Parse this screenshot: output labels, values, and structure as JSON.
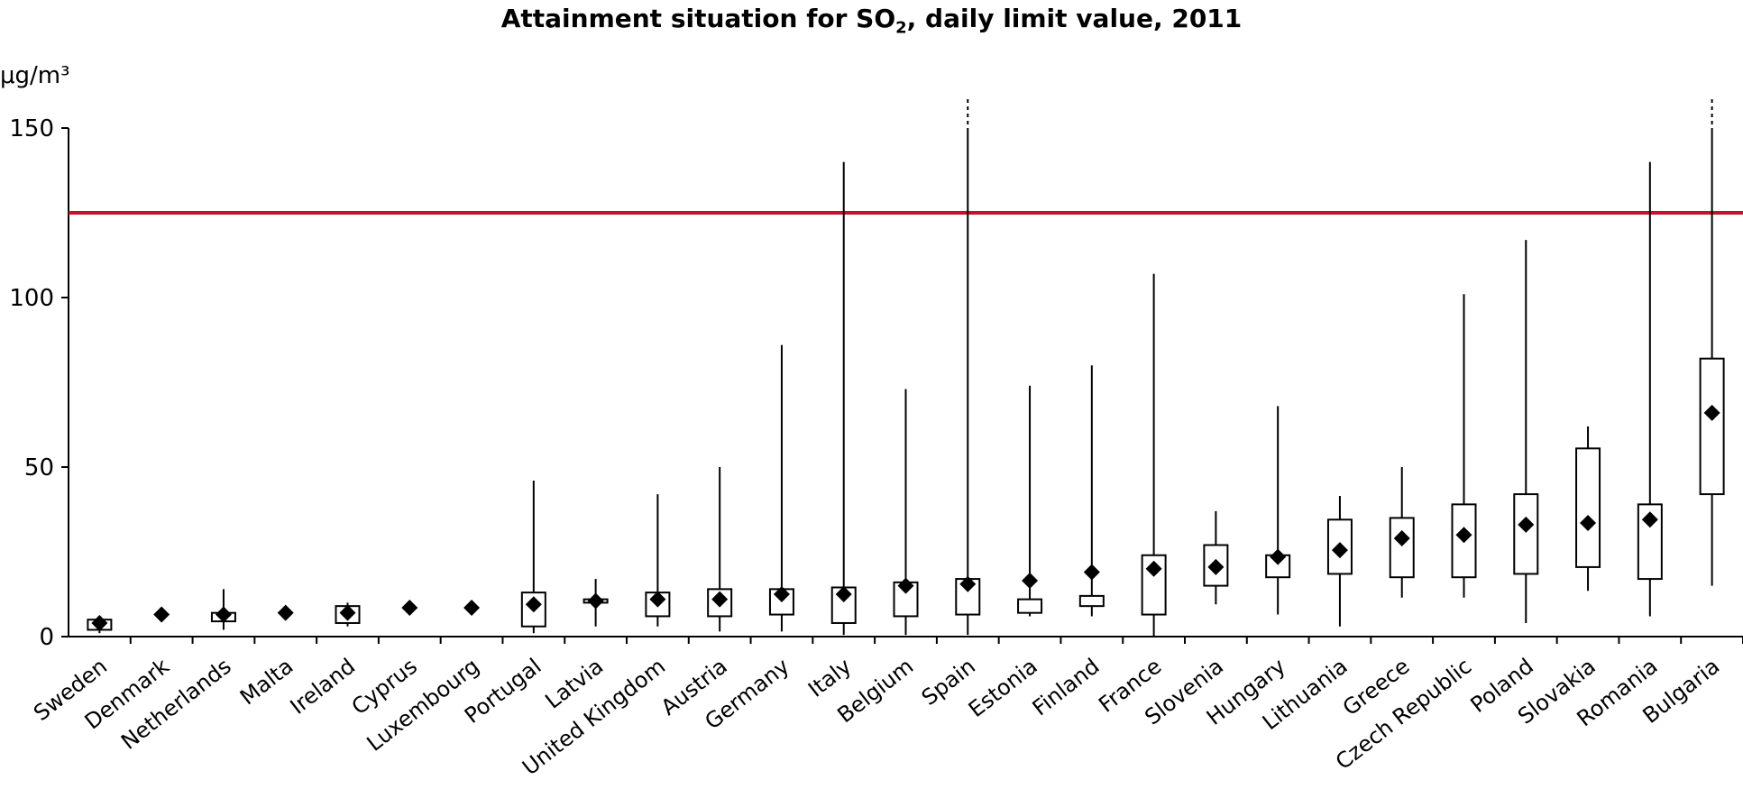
{
  "chart_data": {
    "type": "box",
    "title_main": "Attainment situation for SO",
    "title_sub": "2",
    "title_rest": ", daily limit value, 2011",
    "ylabel": "μg/m³",
    "ylim": [
      0,
      150
    ],
    "yticks": [
      0,
      50,
      100,
      150
    ],
    "limit_value": 125,
    "limit_color": "#c8102e",
    "series": [
      {
        "country": "Sweden",
        "min": 1,
        "q1": 2,
        "mean": 4,
        "q3": 5,
        "max": 5,
        "clipped": false
      },
      {
        "country": "Denmark",
        "min": 6.5,
        "q1": 6.5,
        "mean": 6.5,
        "q3": 6.5,
        "max": 6.5,
        "clipped": false
      },
      {
        "country": "Netherlands",
        "min": 2,
        "q1": 4.5,
        "mean": 6.5,
        "q3": 7,
        "max": 14,
        "clipped": false
      },
      {
        "country": "Malta",
        "min": 7,
        "q1": 7,
        "mean": 7,
        "q3": 7,
        "max": 7,
        "clipped": false
      },
      {
        "country": "Ireland",
        "min": 3,
        "q1": 4,
        "mean": 7,
        "q3": 9,
        "max": 10,
        "clipped": false
      },
      {
        "country": "Cyprus",
        "min": 8.5,
        "q1": 8.5,
        "mean": 8.5,
        "q3": 8.5,
        "max": 8.5,
        "clipped": false
      },
      {
        "country": "Luxembourg",
        "min": 8.5,
        "q1": 8.5,
        "mean": 8.5,
        "q3": 8.5,
        "max": 8.5,
        "clipped": false
      },
      {
        "country": "Portugal",
        "min": 1,
        "q1": 3,
        "mean": 9.5,
        "q3": 13,
        "max": 46,
        "clipped": false
      },
      {
        "country": "Latvia",
        "min": 3,
        "q1": 10,
        "mean": 10.5,
        "q3": 11,
        "max": 17,
        "clipped": false
      },
      {
        "country": "United Kingdom",
        "min": 3,
        "q1": 6,
        "mean": 11,
        "q3": 13,
        "max": 42,
        "clipped": false
      },
      {
        "country": "Austria",
        "min": 1.5,
        "q1": 6,
        "mean": 11,
        "q3": 14,
        "max": 50,
        "clipped": false
      },
      {
        "country": "Germany",
        "min": 1.5,
        "q1": 6.5,
        "mean": 12.5,
        "q3": 14,
        "max": 86,
        "clipped": false
      },
      {
        "country": "Italy",
        "min": 0.5,
        "q1": 4,
        "mean": 12.5,
        "q3": 14.5,
        "max": 140,
        "clipped": false
      },
      {
        "country": "Belgium",
        "min": 0.5,
        "q1": 6,
        "mean": 15,
        "q3": 16,
        "max": 73,
        "clipped": false
      },
      {
        "country": "Spain",
        "min": 0.5,
        "q1": 6.5,
        "mean": 15.5,
        "q3": 17,
        "max": 150,
        "clipped": true
      },
      {
        "country": "Estonia",
        "min": 6,
        "q1": 7,
        "mean": 16.5,
        "q3": 11,
        "max": 74,
        "clipped": false
      },
      {
        "country": "Finland",
        "min": 6,
        "q1": 9,
        "mean": 19,
        "q3": 12,
        "max": 80,
        "clipped": false
      },
      {
        "country": "France",
        "min": 0,
        "q1": 6.5,
        "mean": 20,
        "q3": 24,
        "max": 107,
        "clipped": false
      },
      {
        "country": "Slovenia",
        "min": 9.5,
        "q1": 15,
        "mean": 20.5,
        "q3": 27,
        "max": 37,
        "clipped": false
      },
      {
        "country": "Hungary",
        "min": 6.5,
        "q1": 17.5,
        "mean": 23.5,
        "q3": 24,
        "max": 68,
        "clipped": false
      },
      {
        "country": "Lithuania",
        "min": 3,
        "q1": 18.5,
        "mean": 25.5,
        "q3": 34.5,
        "max": 41.5,
        "clipped": false
      },
      {
        "country": "Greece",
        "min": 11.5,
        "q1": 17.5,
        "mean": 29,
        "q3": 35,
        "max": 50,
        "clipped": false
      },
      {
        "country": "Czech Republic",
        "min": 11.5,
        "q1": 17.5,
        "mean": 30,
        "q3": 39,
        "max": 101,
        "clipped": false
      },
      {
        "country": "Poland",
        "min": 4,
        "q1": 18.5,
        "mean": 33,
        "q3": 42,
        "max": 117,
        "clipped": false
      },
      {
        "country": "Slovakia",
        "min": 13.5,
        "q1": 20.5,
        "mean": 33.5,
        "q3": 55.5,
        "max": 62,
        "clipped": false
      },
      {
        "country": "Romania",
        "min": 6,
        "q1": 17,
        "mean": 34.5,
        "q3": 39,
        "max": 140,
        "clipped": false
      },
      {
        "country": "Bulgaria",
        "min": 15,
        "q1": 42,
        "mean": 66,
        "q3": 82,
        "max": 150,
        "clipped": true
      }
    ]
  }
}
